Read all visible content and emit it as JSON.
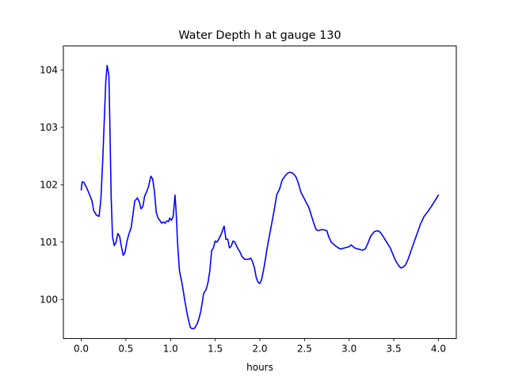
{
  "chart_data": {
    "type": "line",
    "title": "Water Depth h at gauge 130",
    "xlabel": "hours",
    "ylabel": "",
    "xlim": [
      -0.2,
      4.2
    ],
    "ylim": [
      99.32,
      104.42
    ],
    "xticks": [
      0.0,
      0.5,
      1.0,
      1.5,
      2.0,
      2.5,
      3.0,
      3.5,
      4.0
    ],
    "xtick_labels": [
      "0.0",
      "0.5",
      "1.0",
      "1.5",
      "2.0",
      "2.5",
      "3.0",
      "3.5",
      "4.0"
    ],
    "yticks": [
      100,
      101,
      102,
      103,
      104
    ],
    "ytick_labels": [
      "100",
      "101",
      "102",
      "103",
      "104"
    ],
    "grid": false,
    "legend": "none",
    "series": [
      {
        "color": "#0000ff",
        "x": [
          0.0,
          0.01,
          0.03,
          0.06,
          0.09,
          0.12,
          0.14,
          0.17,
          0.2,
          0.22,
          0.24,
          0.26,
          0.275,
          0.29,
          0.31,
          0.32,
          0.335,
          0.35,
          0.37,
          0.39,
          0.41,
          0.43,
          0.45,
          0.47,
          0.49,
          0.51,
          0.53,
          0.56,
          0.6,
          0.63,
          0.65,
          0.67,
          0.69,
          0.71,
          0.73,
          0.75,
          0.78,
          0.8,
          0.82,
          0.84,
          0.86,
          0.88,
          0.9,
          0.92,
          0.94,
          0.96,
          0.98,
          0.99,
          1.01,
          1.03,
          1.05,
          1.06,
          1.07,
          1.075,
          1.085,
          1.1,
          1.13,
          1.16,
          1.19,
          1.22,
          1.24,
          1.27,
          1.3,
          1.32,
          1.34,
          1.37,
          1.38,
          1.4,
          1.42,
          1.44,
          1.46,
          1.48,
          1.5,
          1.52,
          1.54,
          1.57,
          1.6,
          1.62,
          1.64,
          1.66,
          1.68,
          1.7,
          1.72,
          1.75,
          1.78,
          1.8,
          1.83,
          1.87,
          1.9,
          1.92,
          1.94,
          1.96,
          1.98,
          2.0,
          2.02,
          2.04,
          2.06,
          2.08,
          2.1,
          2.13,
          2.16,
          2.19,
          2.22,
          2.25,
          2.28,
          2.31,
          2.34,
          2.37,
          2.4,
          2.42,
          2.44,
          2.46,
          2.5,
          2.55,
          2.6,
          2.63,
          2.65,
          2.7,
          2.75,
          2.77,
          2.8,
          2.85,
          2.9,
          2.95,
          3.0,
          3.02,
          3.04,
          3.06,
          3.1,
          3.15,
          3.18,
          3.21,
          3.24,
          3.28,
          3.32,
          3.35,
          3.38,
          3.42,
          3.46,
          3.5,
          3.53,
          3.56,
          3.58,
          3.6,
          3.63,
          3.66,
          3.7,
          3.75,
          3.8,
          3.84,
          3.88,
          3.92,
          3.96,
          4.0
        ],
        "values": [
          101.91,
          102.05,
          102.04,
          101.95,
          101.84,
          101.72,
          101.55,
          101.47,
          101.45,
          101.75,
          102.4,
          103.2,
          103.8,
          104.08,
          103.9,
          103.1,
          101.8,
          101.1,
          100.94,
          101.0,
          101.15,
          101.1,
          100.92,
          100.77,
          100.82,
          101.0,
          101.12,
          101.26,
          101.72,
          101.77,
          101.7,
          101.58,
          101.62,
          101.8,
          101.87,
          101.95,
          102.15,
          102.1,
          101.88,
          101.52,
          101.42,
          101.38,
          101.33,
          101.35,
          101.33,
          101.37,
          101.36,
          101.42,
          101.38,
          101.45,
          101.82,
          101.6,
          101.3,
          101.1,
          100.83,
          100.5,
          100.27,
          99.98,
          99.72,
          99.52,
          99.49,
          99.5,
          99.58,
          99.68,
          99.8,
          100.1,
          100.13,
          100.18,
          100.3,
          100.5,
          100.85,
          100.9,
          101.02,
          101.0,
          101.05,
          101.15,
          101.28,
          101.05,
          101.05,
          100.9,
          100.93,
          101.02,
          101.0,
          100.9,
          100.82,
          100.75,
          100.7,
          100.7,
          100.72,
          100.65,
          100.55,
          100.38,
          100.3,
          100.28,
          100.35,
          100.5,
          100.68,
          100.88,
          101.05,
          101.3,
          101.55,
          101.83,
          101.92,
          102.08,
          102.15,
          102.2,
          102.22,
          102.2,
          102.15,
          102.08,
          101.98,
          101.87,
          101.75,
          101.6,
          101.35,
          101.22,
          101.2,
          101.22,
          101.2,
          101.1,
          101.0,
          100.93,
          100.88,
          100.9,
          100.92,
          100.95,
          100.93,
          100.9,
          100.88,
          100.86,
          100.88,
          100.98,
          101.1,
          101.18,
          101.2,
          101.17,
          101.1,
          101.0,
          100.9,
          100.75,
          100.65,
          100.58,
          100.55,
          100.56,
          100.6,
          100.7,
          100.88,
          101.1,
          101.32,
          101.45,
          101.53,
          101.62,
          101.72,
          101.82
        ]
      }
    ]
  }
}
